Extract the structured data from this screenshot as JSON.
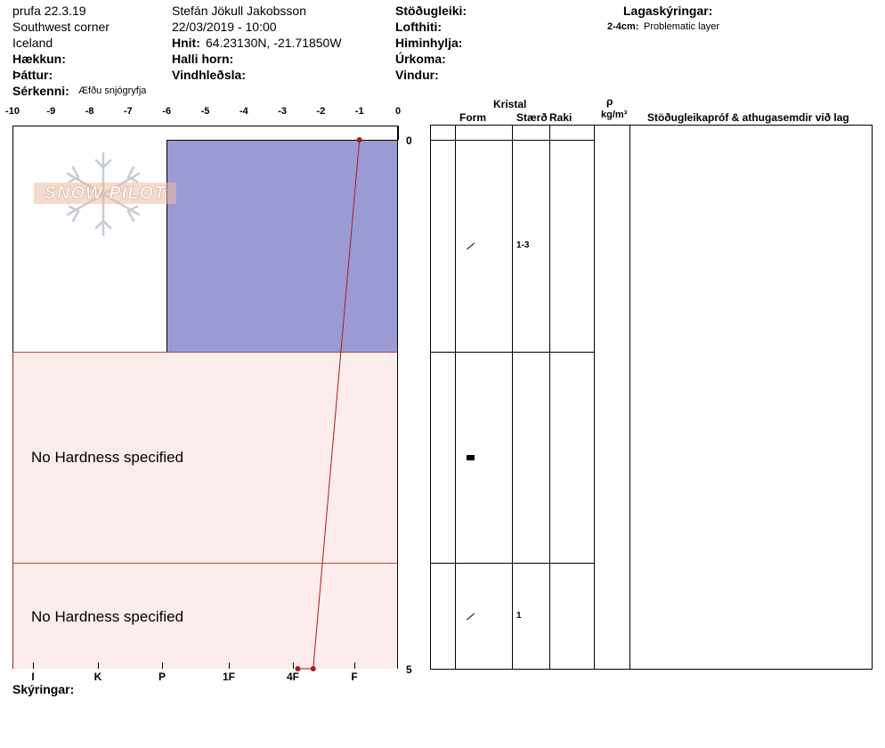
{
  "header": {
    "profile_name": "prufa 22.3.19",
    "location": "Southwest corner",
    "country": "Iceland",
    "elevation_label": "Hækkun:",
    "aspect_label": "Þáttur:",
    "features_label": "Sérkenni:",
    "features_value": "Æfðu snjógryfja",
    "observer": "Stefán Jökull Jakobsson",
    "datetime": "22/03/2019 - 10:00",
    "coords_label": "Hnit:",
    "coords_value": "64.23130N, -21.71850W",
    "slope_label": "Halli horn:",
    "wind_loading_label": "Vindhleðsla:",
    "stability_label": "Stöðugleiki:",
    "air_temp_label": "Lofthiti:",
    "sky_label": "Himinhylja:",
    "precip_label": "Úrkoma:",
    "wind_label": "Vindur:",
    "legend_title": "Lagaskýringar:",
    "legend_depth": "2-4cm:",
    "legend_text": "Problematic layer"
  },
  "watermark": {
    "text": "SNOW PILOT"
  },
  "chart_data": {
    "type": "area",
    "title": "",
    "temp_axis": {
      "ticks": [
        "-10",
        "-9",
        "-8",
        "-7",
        "-6",
        "-5",
        "-4",
        "-3",
        "-2",
        "-1",
        "0"
      ],
      "range": [
        -10,
        0
      ]
    },
    "depth_axis": {
      "ticks": [
        "0",
        "5"
      ],
      "range": [
        0,
        5
      ]
    },
    "hardness_axis": {
      "ticks": [
        "I",
        "K",
        "P",
        "1F",
        "4F",
        "F"
      ]
    },
    "layers": [
      {
        "top": 0,
        "bottom": 2,
        "hardness_temp": -6,
        "color": "#9b9bd4",
        "label": ""
      },
      {
        "top": 2,
        "bottom": 4,
        "color": "#fdecec",
        "label": "No Hardness specified"
      },
      {
        "top": 4,
        "bottom": 5,
        "color": "#fdecec",
        "label": "No Hardness specified"
      }
    ],
    "temperature_profile": [
      {
        "depth": 0,
        "temp": -1.0
      },
      {
        "depth": 5,
        "temp": -2.2
      },
      {
        "depth": 5,
        "temp": -2.6
      }
    ],
    "line_color": "#a61c1c"
  },
  "table": {
    "crystal_label": "Kristal",
    "form_label": "Form",
    "size_label": "Stærð",
    "moisture_label": "Raki",
    "rho_label": "ρ",
    "density_unit": "kg/m³",
    "comments_label": "Stöðugleikapróf & athugasemdir við lag",
    "rows": [
      {
        "form_icon": "slash-icon",
        "size": "1-3"
      },
      {
        "form_icon": "square-icon",
        "size": ""
      },
      {
        "form_icon": "slash-icon",
        "size": "1"
      }
    ]
  },
  "footer": {
    "comments_label": "Skýringar:"
  }
}
